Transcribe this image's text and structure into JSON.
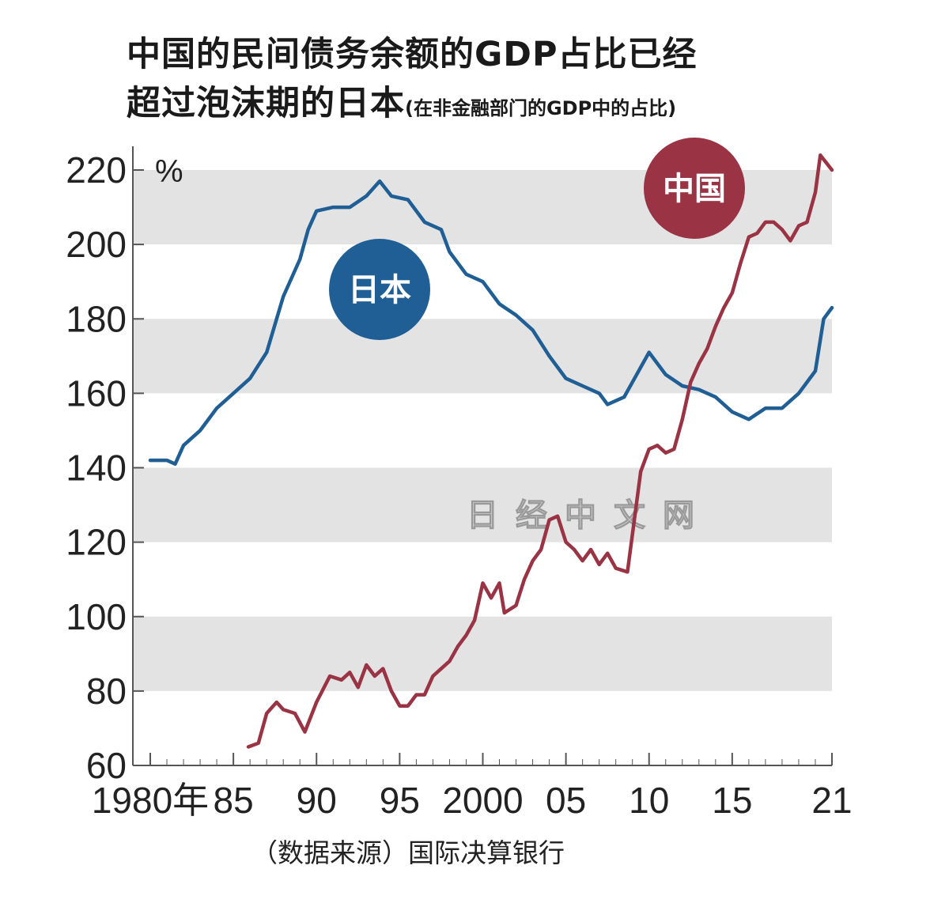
{
  "title_line1": "中国的民间债务余额的GDP占比已经",
  "title_line2": "超过泡沫期的日本",
  "subtitle": "(在非金融部门的GDP中的占比)",
  "source": "（数据来源）国际决算银行",
  "watermark": "日经中文网",
  "chart_data": {
    "type": "line",
    "unit_label": "%",
    "ylim": [
      60,
      220
    ],
    "yticks": [
      60,
      80,
      100,
      120,
      140,
      160,
      180,
      200,
      220
    ],
    "xlim": [
      1980,
      2021
    ],
    "xtick_values": [
      1980,
      1985,
      1990,
      1995,
      2000,
      2005,
      2010,
      2015,
      2021
    ],
    "xtick_labels": [
      "1980年",
      "85",
      "90",
      "95",
      "2000",
      "05",
      "10",
      "15",
      "21"
    ],
    "grid": "horizontal gray bands",
    "series": [
      {
        "name": "日本",
        "color": "#1f5f96",
        "label_position": "inside-left",
        "points": [
          [
            1980,
            142
          ],
          [
            1981,
            142
          ],
          [
            1981.5,
            141
          ],
          [
            1982,
            146
          ],
          [
            1983,
            150
          ],
          [
            1984,
            156
          ],
          [
            1985,
            160
          ],
          [
            1986,
            164
          ],
          [
            1987,
            171
          ],
          [
            1988,
            186
          ],
          [
            1989,
            196
          ],
          [
            1989.5,
            204
          ],
          [
            1990,
            209
          ],
          [
            1991,
            210
          ],
          [
            1992,
            210
          ],
          [
            1993,
            213
          ],
          [
            1993.8,
            217
          ],
          [
            1994.5,
            213
          ],
          [
            1995.5,
            212
          ],
          [
            1996.5,
            206
          ],
          [
            1997.5,
            204
          ],
          [
            1998,
            198
          ],
          [
            1999,
            192
          ],
          [
            2000,
            190
          ],
          [
            2001,
            184
          ],
          [
            2002,
            181
          ],
          [
            2003,
            177
          ],
          [
            2004,
            170
          ],
          [
            2005,
            164
          ],
          [
            2006,
            162
          ],
          [
            2007,
            160
          ],
          [
            2007.5,
            157
          ],
          [
            2008.5,
            159
          ],
          [
            2009,
            163
          ],
          [
            2010,
            171
          ],
          [
            2011,
            165
          ],
          [
            2012,
            162
          ],
          [
            2013,
            161
          ],
          [
            2014,
            159
          ],
          [
            2015,
            155
          ],
          [
            2016,
            153
          ],
          [
            2017,
            156
          ],
          [
            2018,
            156
          ],
          [
            2019,
            160
          ],
          [
            2020,
            166
          ],
          [
            2020.5,
            180
          ],
          [
            2021,
            183
          ]
        ]
      },
      {
        "name": "中国",
        "color": "#9a3344",
        "label_position": "top-right",
        "points": [
          [
            1985.9,
            65
          ],
          [
            1986.5,
            66
          ],
          [
            1987,
            74
          ],
          [
            1987.6,
            77
          ],
          [
            1988,
            75
          ],
          [
            1988.7,
            74
          ],
          [
            1989.3,
            69
          ],
          [
            1990,
            77
          ],
          [
            1990.8,
            84
          ],
          [
            1991.5,
            83
          ],
          [
            1992,
            85
          ],
          [
            1992.5,
            81
          ],
          [
            1993,
            87
          ],
          [
            1993.5,
            84
          ],
          [
            1994,
            86
          ],
          [
            1994.5,
            80
          ],
          [
            1995,
            76
          ],
          [
            1995.5,
            76
          ],
          [
            1996,
            79
          ],
          [
            1996.5,
            79
          ],
          [
            1997,
            84
          ],
          [
            1997.5,
            86
          ],
          [
            1998,
            88
          ],
          [
            1998.5,
            92
          ],
          [
            1999,
            95
          ],
          [
            1999.5,
            99
          ],
          [
            2000,
            109
          ],
          [
            2000.5,
            105
          ],
          [
            2001,
            109
          ],
          [
            2001.3,
            101
          ],
          [
            2002,
            103
          ],
          [
            2002.5,
            110
          ],
          [
            2003,
            115
          ],
          [
            2003.5,
            118
          ],
          [
            2004,
            126
          ],
          [
            2004.5,
            127
          ],
          [
            2005,
            120
          ],
          [
            2005.5,
            118
          ],
          [
            2006,
            115
          ],
          [
            2006.5,
            118
          ],
          [
            2007,
            114
          ],
          [
            2007.5,
            117
          ],
          [
            2008,
            113
          ],
          [
            2008.7,
            112
          ],
          [
            2009.5,
            139
          ],
          [
            2010,
            145
          ],
          [
            2010.5,
            146
          ],
          [
            2011,
            144
          ],
          [
            2011.5,
            145
          ],
          [
            2012,
            153
          ],
          [
            2012.5,
            163
          ],
          [
            2013,
            168
          ],
          [
            2013.5,
            172
          ],
          [
            2014,
            178
          ],
          [
            2014.5,
            183
          ],
          [
            2015,
            187
          ],
          [
            2015.5,
            195
          ],
          [
            2016,
            202
          ],
          [
            2016.5,
            203
          ],
          [
            2017,
            206
          ],
          [
            2017.5,
            206
          ],
          [
            2018,
            204
          ],
          [
            2018.5,
            201
          ],
          [
            2019,
            205
          ],
          [
            2019.5,
            206
          ],
          [
            2020,
            214
          ],
          [
            2020.3,
            224
          ],
          [
            2021,
            220
          ]
        ]
      }
    ]
  }
}
